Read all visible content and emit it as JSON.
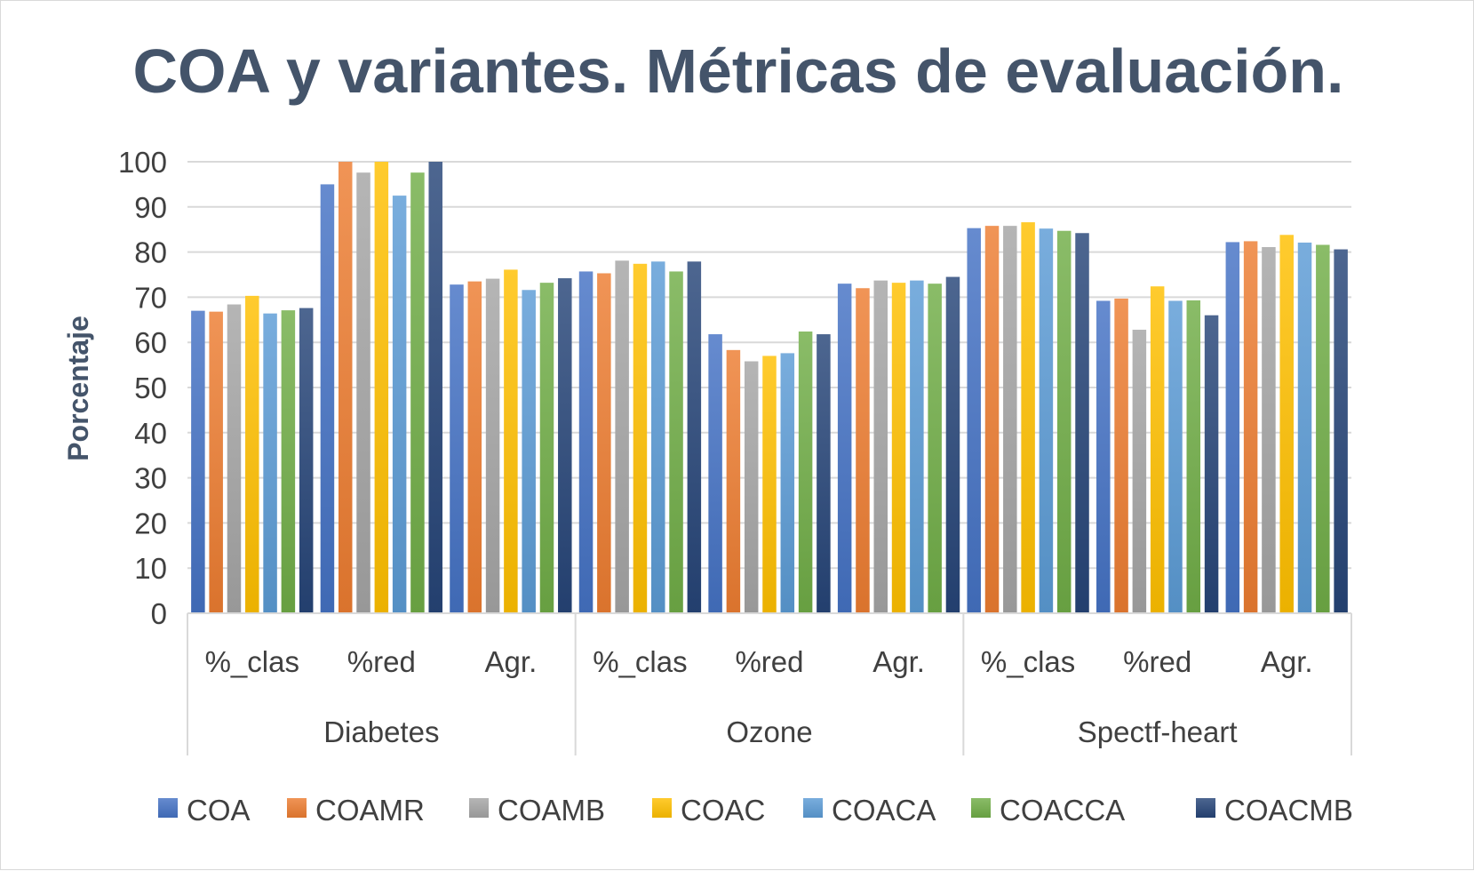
{
  "chart_data": {
    "type": "bar",
    "title": "COA y variantes. Métricas de evaluación.",
    "xlabel": "",
    "ylabel": "Porcentaje",
    "ylim": [
      0,
      100
    ],
    "yticks": [
      "0",
      "10",
      "20",
      "30",
      "40",
      "50",
      "60",
      "70",
      "80",
      "90",
      "100"
    ],
    "grid": true,
    "legend_position": "bottom",
    "groups": [
      {
        "label": "Diabetes",
        "categories": [
          "%_clas",
          "%red",
          "Agr."
        ]
      },
      {
        "label": "Ozone",
        "categories": [
          "%_clas",
          "%red",
          "Agr."
        ]
      },
      {
        "label": "Spectf-heart",
        "categories": [
          "%_clas",
          "%red",
          "Agr."
        ]
      }
    ],
    "series": [
      {
        "name": "COA",
        "color": "#4472c4",
        "values": [
          67,
          95,
          72.8,
          75.7,
          61.8,
          73,
          85.3,
          69.2,
          82.2
        ]
      },
      {
        "name": "COAMR",
        "color": "#ed7d31",
        "values": [
          66.8,
          100,
          73.5,
          75.3,
          58.3,
          72,
          85.8,
          69.7,
          82.4
        ]
      },
      {
        "name": "COAMB",
        "color": "#a5a5a5",
        "values": [
          68.4,
          97.6,
          74.1,
          78.1,
          55.8,
          73.7,
          85.8,
          62.8,
          81.1
        ]
      },
      {
        "name": "COAC",
        "color": "#ffc000",
        "values": [
          70.3,
          100,
          76.1,
          77.4,
          57,
          73.2,
          86.6,
          72.4,
          83.8
        ]
      },
      {
        "name": "COACA",
        "color": "#5b9bd5",
        "values": [
          66.4,
          92.5,
          71.6,
          77.9,
          57.6,
          73.7,
          85.2,
          69.2,
          82.1
        ]
      },
      {
        "name": "COACCA",
        "color": "#70ad47",
        "values": [
          67.1,
          97.6,
          73.2,
          75.7,
          62.4,
          73,
          84.7,
          69.3,
          81.6
        ]
      },
      {
        "name": "COACMB",
        "color": "#264478",
        "values": [
          67.6,
          100,
          74.2,
          77.9,
          61.8,
          74.5,
          84.2,
          66,
          80.6
        ]
      }
    ]
  }
}
